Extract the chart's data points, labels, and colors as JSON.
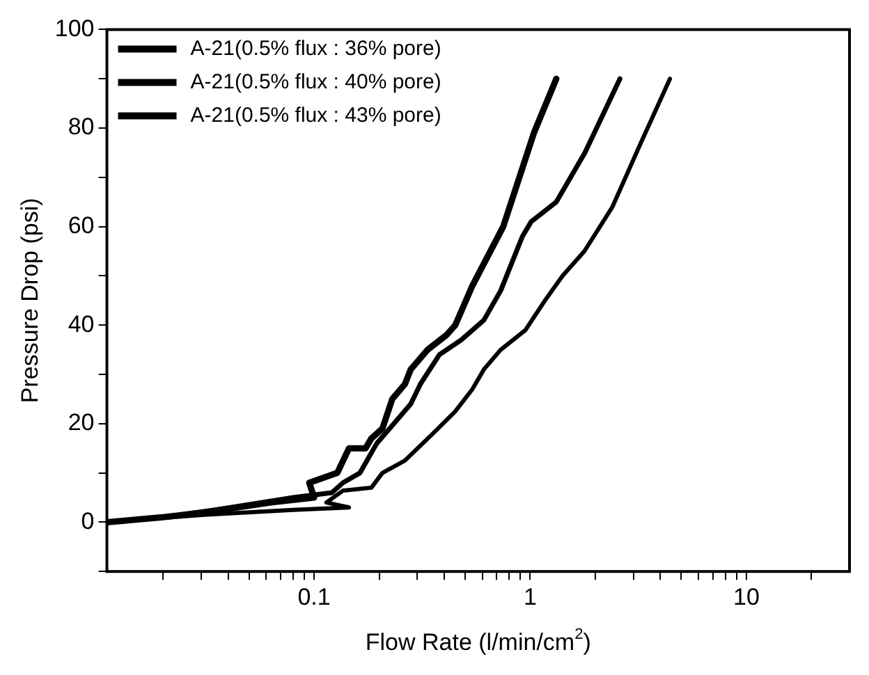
{
  "chart_data": {
    "type": "line",
    "xlabel": "Flow Rate (l/min/cm$^{2}$)",
    "ylabel": "Pressure Drop (psi)",
    "log": "x",
    "xlim": [
      0.011,
      30
    ],
    "ylim": [
      -10,
      100
    ],
    "xticks": [
      {
        "value": 0.02,
        "label": null
      },
      {
        "value": 0.03,
        "label": null
      },
      {
        "value": 0.04,
        "label": null
      },
      {
        "value": 0.05,
        "label": null
      },
      {
        "value": 0.06,
        "label": null
      },
      {
        "value": 0.07,
        "label": null
      },
      {
        "value": 0.08,
        "label": null
      },
      {
        "value": 0.09,
        "label": null
      },
      0.1,
      {
        "value": 0.2,
        "label": null
      },
      {
        "value": 0.3,
        "label": null
      },
      {
        "value": 0.4,
        "label": null
      },
      {
        "value": 0.5,
        "label": null
      },
      {
        "value": 0.6,
        "label": null
      },
      {
        "value": 0.7,
        "label": null
      },
      {
        "value": 0.8,
        "label": null
      },
      {
        "value": 0.9,
        "label": null
      },
      1,
      {
        "value": 2,
        "label": null
      },
      {
        "value": 3,
        "label": null
      },
      {
        "value": 4,
        "label": null
      },
      {
        "value": 5,
        "label": null
      },
      {
        "value": 6,
        "label": null
      },
      {
        "value": 7,
        "label": null
      },
      {
        "value": 8,
        "label": null
      },
      {
        "value": 9,
        "label": null
      },
      10,
      {
        "value": 20,
        "label": null
      }
    ],
    "yticks": [
      {
        "value": -10,
        "label": null
      },
      0,
      {
        "value": 10,
        "label": null
      },
      20,
      {
        "value": 30,
        "label": null
      },
      40,
      {
        "value": 50,
        "label": null
      },
      60,
      {
        "value": 70,
        "label": null
      },
      80,
      {
        "value": 90,
        "label": null
      },
      100
    ],
    "grid": false,
    "legend": "top left",
    "marker": "none",
    "line_style": "solid",
    "series": [
      {
        "name": "A-21(0.5% flux : 36% pore)",
        "color": "#000000",
        "x": [
          0.011,
          0.02,
          0.031,
          0.063,
          0.1,
          0.095,
          0.128,
          0.145,
          0.173,
          0.184,
          0.207,
          0.23,
          0.263,
          0.28,
          0.335,
          0.41,
          0.45,
          0.54,
          0.75,
          1.04,
          1.32
        ],
        "values": [
          0,
          1,
          2,
          4,
          5,
          8,
          10,
          15,
          15,
          17,
          19,
          25,
          28,
          31,
          35,
          38,
          40,
          48,
          60,
          79,
          90
        ]
      },
      {
        "name": "A-21(0.5% flux : 40% pore)",
        "color": "#000000",
        "x": [
          0.011,
          0.02,
          0.035,
          0.08,
          0.121,
          0.136,
          0.163,
          0.195,
          0.234,
          0.28,
          0.31,
          0.38,
          0.48,
          0.61,
          0.73,
          0.92,
          1.01,
          1.32,
          1.79,
          2.6
        ],
        "values": [
          0,
          1,
          2.5,
          5,
          6,
          8,
          10,
          16,
          20,
          24,
          28,
          34,
          37,
          41,
          47,
          58,
          61,
          65,
          75,
          90
        ]
      },
      {
        "name": "A-21(0.5% flux : 43% pore)",
        "color": "#000000",
        "x": [
          0.011,
          0.031,
          0.08,
          0.145,
          0.114,
          0.136,
          0.184,
          0.207,
          0.263,
          0.355,
          0.45,
          0.54,
          0.61,
          0.73,
          0.95,
          1.17,
          1.41,
          1.78,
          2.4,
          3.25,
          4.43
        ],
        "values": [
          0,
          1.5,
          2.5,
          3,
          4,
          6.4,
          7,
          10,
          12.5,
          18,
          22.5,
          27,
          31,
          35,
          39,
          45,
          50,
          55,
          64,
          77,
          90
        ]
      }
    ]
  }
}
